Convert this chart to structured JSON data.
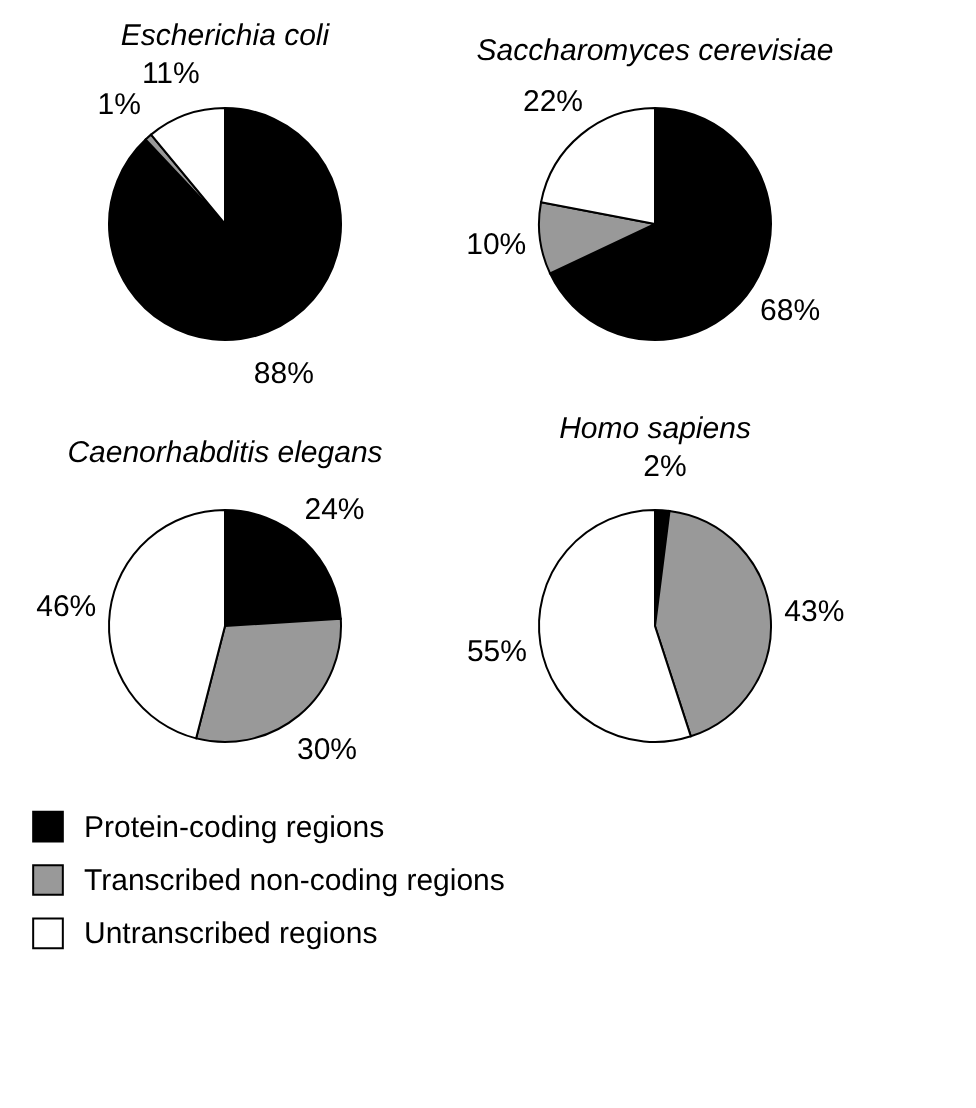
{
  "chart_data": [
    {
      "type": "pie",
      "title": "Escherichia coli",
      "categories": [
        "Protein-coding regions",
        "Transcribed non-coding regions",
        "Untranscribed regions"
      ],
      "values": [
        88,
        1,
        11
      ],
      "colors": [
        "#000000",
        "#999999",
        "#ffffff"
      ],
      "value_labels": [
        "88%",
        "1%",
        "11%"
      ],
      "legend": "bottom"
    },
    {
      "type": "pie",
      "title": "Saccharomyces cerevisiae",
      "values": [
        68,
        10,
        22
      ],
      "colors": [
        "#000000",
        "#999999",
        "#ffffff"
      ],
      "value_labels": [
        "68%",
        "10%",
        "22%"
      ]
    },
    {
      "type": "pie",
      "title": "Caenorhabditis elegans",
      "values": [
        24,
        30,
        46
      ],
      "colors": [
        "#000000",
        "#999999",
        "#ffffff"
      ],
      "value_labels": [
        "24%",
        "30%",
        "46%"
      ]
    },
    {
      "type": "pie",
      "title": "Homo sapiens",
      "values": [
        2,
        43,
        55
      ],
      "colors": [
        "#000000",
        "#999999",
        "#ffffff"
      ],
      "value_labels": [
        "2%",
        "43%",
        "55%"
      ]
    }
  ]
}
